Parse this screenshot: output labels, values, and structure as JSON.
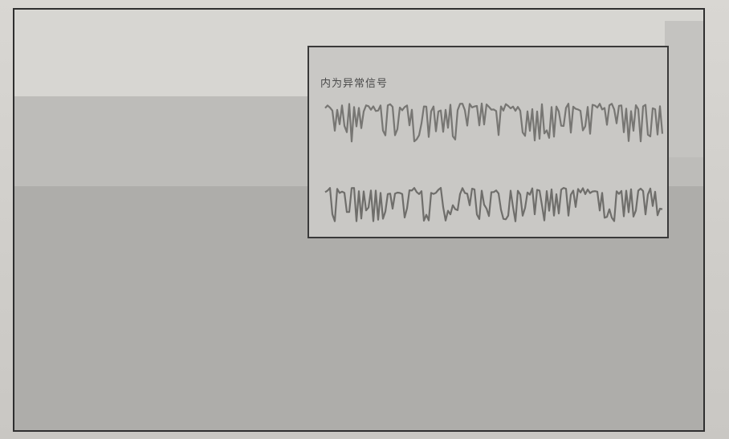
{
  "image": {
    "description_free": true,
    "colors": {
      "paper": "#d4d2ce",
      "frame_border": "#2f2f2f",
      "band_top": "#d7d6d2",
      "band_mid": "#bdbcb9",
      "band_bottom": "#aeadaa",
      "inset_bg": "#c9c8c5",
      "wave_top": "#7a7976",
      "wave_bottom": "#6f6e6b"
    },
    "inset": {
      "label": "内为异常信号"
    }
  }
}
